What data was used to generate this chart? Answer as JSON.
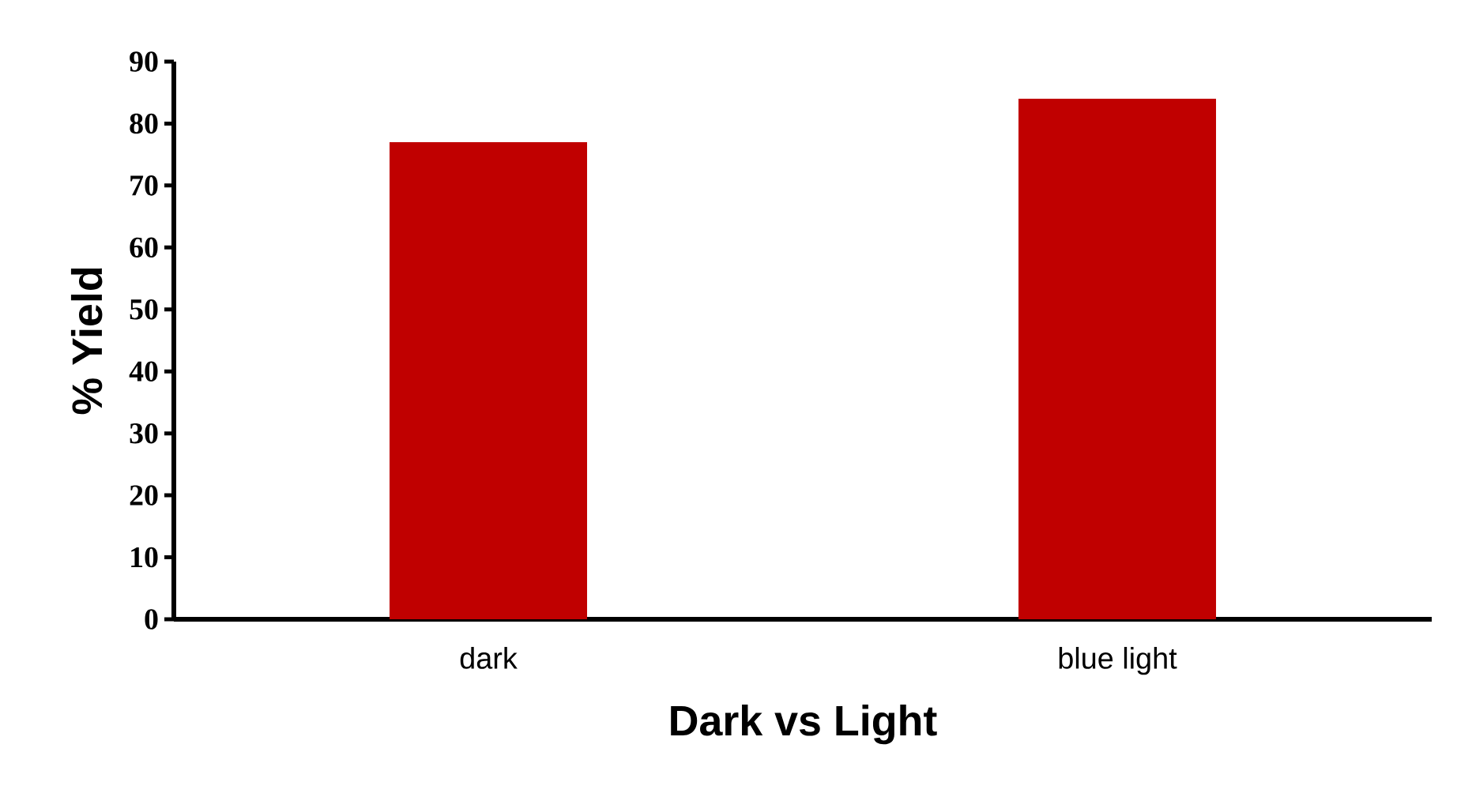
{
  "chart_data": {
    "type": "bar",
    "xlabel": "Dark vs Light",
    "ylabel": "% Yield",
    "categories": [
      "dark",
      "blue light"
    ],
    "values": [
      77,
      84
    ],
    "color": "#c00000",
    "ylim": [
      0,
      90
    ],
    "yticks": [
      0,
      10,
      20,
      30,
      40,
      50,
      60,
      70,
      80,
      90
    ],
    "grid": false
  }
}
